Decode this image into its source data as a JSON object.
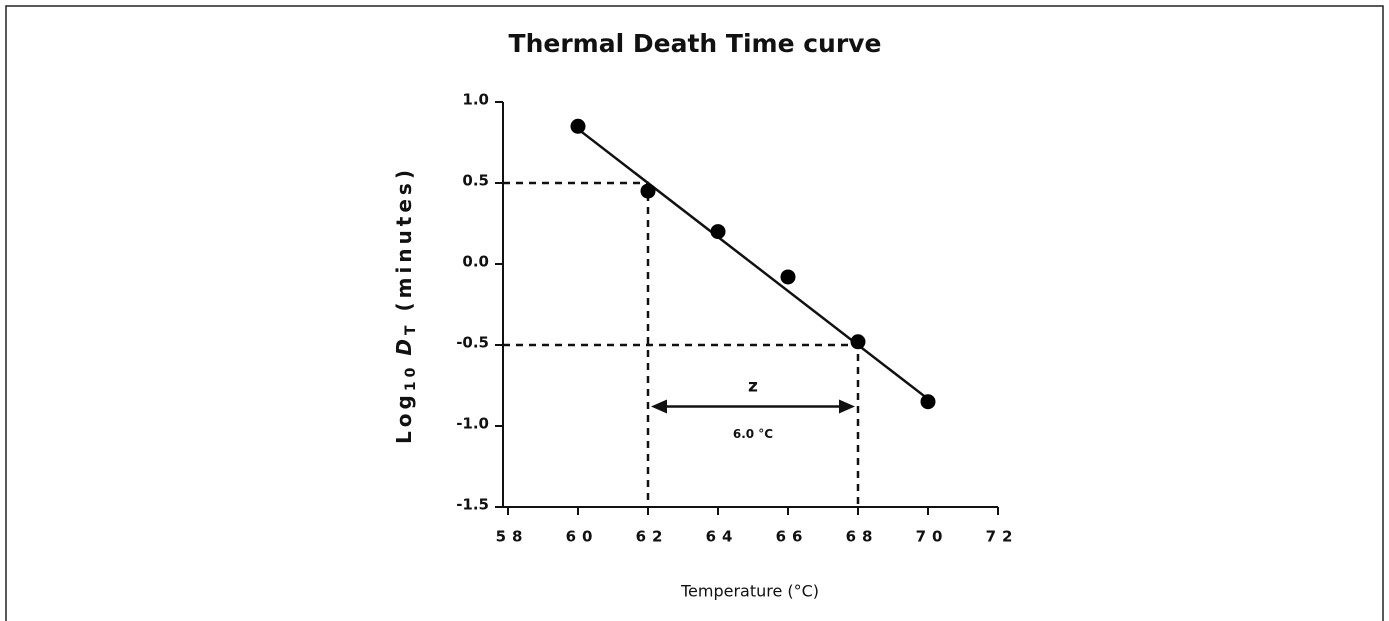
{
  "chart_data": {
    "type": "scatter",
    "title": "Thermal Death Time curve",
    "xlabel": "Temperature (°C)",
    "ylabel_parts": [
      "Log",
      "10",
      "D",
      "T",
      "(minutes)"
    ],
    "x": [
      60,
      62,
      64,
      66,
      68,
      70
    ],
    "values": [
      0.85,
      0.45,
      0.2,
      -0.08,
      -0.48,
      -0.85
    ],
    "color": "#000000",
    "fit_line": {
      "x": [
        60,
        70
      ],
      "values": [
        0.833,
        -0.833
      ]
    },
    "reference_points": [
      {
        "x": 62,
        "y": 0.5
      },
      {
        "x": 68,
        "y": -0.5
      }
    ],
    "annotation": {
      "label": "z",
      "value_label": "6.0 °C",
      "y": -0.88,
      "x": [
        62,
        68
      ]
    },
    "xlim": [
      58,
      72
    ],
    "xticks": [
      58,
      60,
      62,
      64,
      66,
      68,
      70,
      72
    ],
    "ylim": [
      -1.5,
      1.0
    ],
    "yticks": [
      {
        "value": -1.5,
        "label": "-1.5"
      },
      {
        "value": -1.0,
        "label": "-1.0"
      },
      -0.5,
      {
        "value": 0,
        "label": "0.0"
      },
      0.5,
      {
        "value": 1.0,
        "label": "1.0"
      }
    ]
  }
}
